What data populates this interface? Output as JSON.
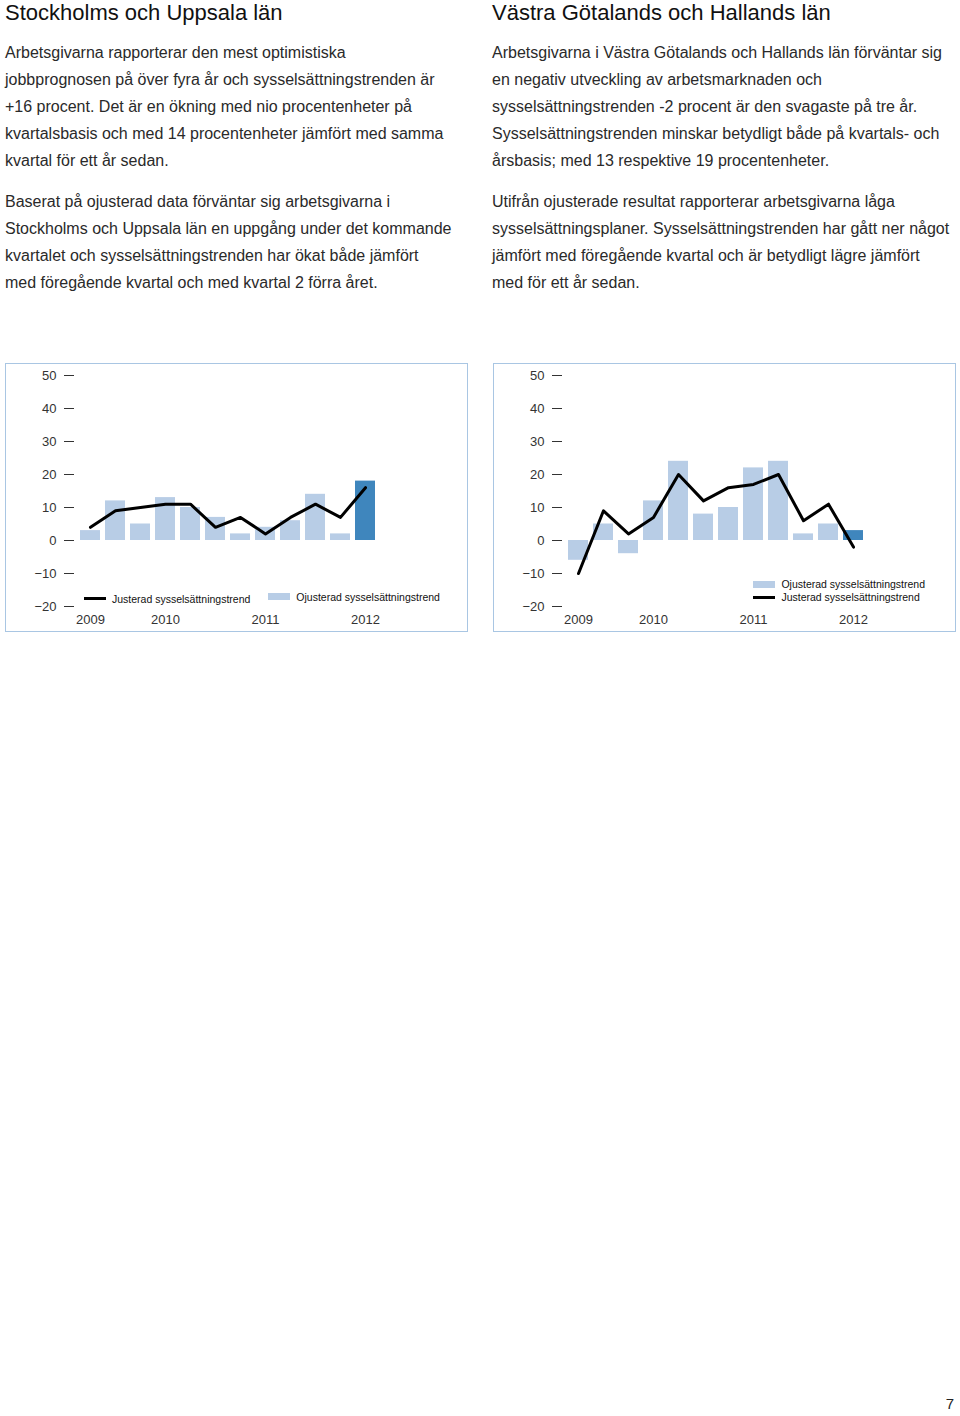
{
  "sections": [
    {
      "heading": "Stockholms och Uppsala län",
      "paragraphs": [
        "Arbetsgivarna rapporterar den mest optimistiska jobbprognosen på över fyra år och sysselsättningstrenden är +16 procent. Det är en ökning med nio procentenheter på kvartalsbasis och med 14 procentenheter jämfört med samma kvartal för ett år sedan.",
        "Baserat på ojusterad data förväntar sig arbetsgivarna i Stockholms och Uppsala län en uppgång under det kommande kvartalet och sysselsättningstrenden har ökat både jämfört med föregående kvartal och med kvartal 2 förra året."
      ]
    },
    {
      "heading": "Västra Götalands och Hallands län",
      "paragraphs": [
        "Arbetsgivarna i Västra Götalands och Hallands län förväntar sig en negativ utveckling av arbetsmarknaden och sysselsättningstrenden -2 procent är den svagaste på tre år. Sysselsättningstrenden minskar betydligt både på kvartals- och årsbasis; med 13 respektive 19 procentenheter.",
        "Utifrån ojusterade resultat rapporterar arbetsgivarna låga sysselsättningsplaner. Sysselsättningstrenden har gått ner något jämfört med föregående kvartal och är betydligt lägre jämfört med för ett år sedan."
      ]
    }
  ],
  "chart_data": [
    {
      "type": "bar",
      "categories": [
        "2009",
        null,
        null,
        "2010",
        null,
        null,
        null,
        "2011",
        null,
        null,
        null,
        "2012"
      ],
      "series": [
        {
          "name": "Justerad sysselsättningstrend",
          "type": "line",
          "color": "#000000",
          "values": [
            4,
            9,
            10,
            11,
            11,
            4,
            7,
            2,
            7,
            11,
            7,
            16
          ]
        },
        {
          "name": "Ojusterad sysselsättningstrend",
          "type": "bar",
          "colors": [
            "#b8cde6",
            "#b8cde6",
            "#b8cde6",
            "#b8cde6",
            "#b8cde6",
            "#b8cde6",
            "#b8cde6",
            "#b8cde6",
            "#b8cde6",
            "#b8cde6",
            "#b8cde6",
            "#3f86bd"
          ],
          "values": [
            3,
            12,
            5,
            13,
            10,
            7,
            2,
            4,
            6,
            14,
            2,
            18
          ]
        }
      ],
      "ylim": [
        -20,
        50
      ],
      "yticks": [
        -20,
        -10,
        0,
        10,
        20,
        30,
        40,
        50
      ],
      "legend": "lower left"
    },
    {
      "type": "bar",
      "categories": [
        "2009",
        null,
        null,
        "2010",
        null,
        null,
        null,
        "2011",
        null,
        null,
        null,
        "2012"
      ],
      "series": [
        {
          "name": "Ojusterad sysselsättningstrend",
          "type": "bar",
          "colors": [
            "#b8cde6",
            "#b8cde6",
            "#b8cde6",
            "#b8cde6",
            "#b8cde6",
            "#b8cde6",
            "#b8cde6",
            "#b8cde6",
            "#b8cde6",
            "#b8cde6",
            "#b8cde6",
            "#3f86bd"
          ],
          "values": [
            -6,
            5,
            -4,
            12,
            24,
            8,
            10,
            22,
            24,
            2,
            5,
            3
          ]
        },
        {
          "name": "Justerad sysselsättningstrend",
          "type": "line",
          "color": "#000000",
          "values": [
            -10,
            9,
            2,
            7,
            20,
            12,
            16,
            17,
            20,
            6,
            11,
            -2
          ]
        }
      ],
      "ylim": [
        -20,
        50
      ],
      "yticks": [
        -20,
        -10,
        0,
        10,
        20,
        30,
        40,
        50
      ],
      "legend": "lower right"
    }
  ],
  "page_number": "7"
}
